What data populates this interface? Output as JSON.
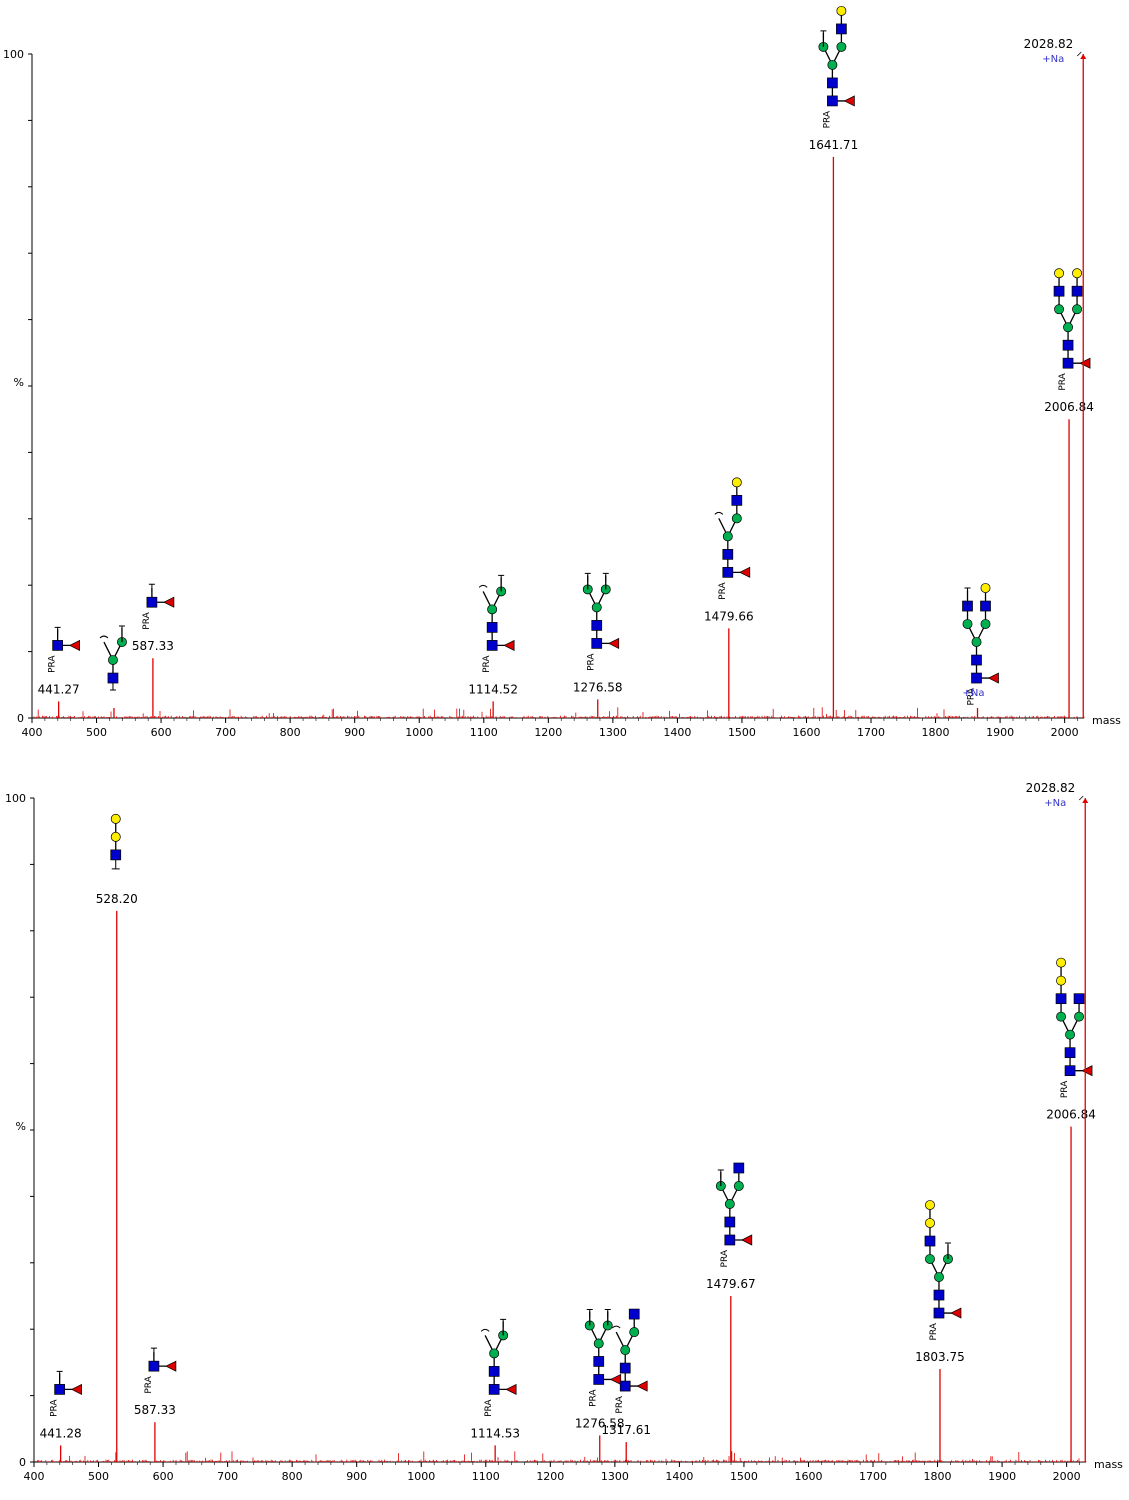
{
  "chart_data": [
    {
      "type": "bar",
      "xlabel": "mass",
      "ylabel": "%",
      "xlim": [
        400,
        2030
      ],
      "ylim": [
        0,
        100
      ],
      "xticks": [
        400,
        500,
        600,
        700,
        800,
        900,
        1000,
        1100,
        1200,
        1300,
        1400,
        1500,
        1600,
        1700,
        1800,
        1900,
        2000
      ],
      "yticks": [
        "0",
        "100"
      ],
      "colors": {
        "peak": "#e00000",
        "adduct": "#3333cc",
        "hexnac": "#0000cc",
        "hex": "#00b050",
        "gal": "#ffee00",
        "fuc": "#dd0000"
      },
      "peaks": [
        {
          "x": 441.27,
          "y": 2.5,
          "label": "441.27",
          "glycan": "fuc-core"
        },
        {
          "x": 527,
          "y": 1.5,
          "label": "",
          "glycan": "partial-branch"
        },
        {
          "x": 587.33,
          "y": 9,
          "label": "587.33",
          "glycan": "fuc-core-only"
        },
        {
          "x": 1114.52,
          "y": 2.5,
          "label": "1114.52",
          "glycan": "fuc-core-man2"
        },
        {
          "x": 1276.58,
          "y": 2.8,
          "label": "1276.58",
          "glycan": "fuc-core-man3"
        },
        {
          "x": 1479.66,
          "y": 13.5,
          "label": "1479.66",
          "glycan": "fuc-1glcnac-gal"
        },
        {
          "x": 1641.71,
          "y": 84.5,
          "label": "1641.71",
          "glycan": "fuc-1glcnac-gal-full"
        },
        {
          "x": 1865,
          "y": 1.5,
          "label": "",
          "glycan": "fuc-2glcnac-gal-adduct"
        },
        {
          "x": 2006.84,
          "y": 45,
          "label": "2006.84",
          "glycan": "fuc-2glcnac-2gal"
        },
        {
          "x": 2028.82,
          "y": 100,
          "label": "2028.82",
          "glycan": ""
        }
      ],
      "adduct_labels": [
        {
          "x": 2028.82,
          "text": "+Na"
        },
        {
          "x": 1865,
          "text": "+Na"
        }
      ],
      "tag": "PRA"
    },
    {
      "type": "bar",
      "xlabel": "mass",
      "ylabel": "%",
      "xlim": [
        400,
        2030
      ],
      "ylim": [
        0,
        100
      ],
      "xticks": [
        400,
        500,
        600,
        700,
        800,
        900,
        1000,
        1100,
        1200,
        1300,
        1400,
        1500,
        1600,
        1700,
        1800,
        1900,
        2000
      ],
      "yticks": [
        "0",
        "100"
      ],
      "colors": {
        "peak": "#e00000",
        "adduct": "#3333cc",
        "hexnac": "#0000cc",
        "hex": "#00b050",
        "gal": "#ffee00",
        "fuc": "#dd0000"
      },
      "peaks": [
        {
          "x": 441.28,
          "y": 2.5,
          "label": "441.28",
          "glycan": "fuc-core"
        },
        {
          "x": 528.2,
          "y": 83,
          "label": "528.20",
          "glycan": "glcnac-2gal"
        },
        {
          "x": 587.33,
          "y": 6,
          "label": "587.33",
          "glycan": "fuc-core-only"
        },
        {
          "x": 1114.53,
          "y": 2.5,
          "label": "1114.53",
          "glycan": "fuc-core-man2"
        },
        {
          "x": 1276.58,
          "y": 4,
          "label": "1276.58",
          "glycan": "fuc-core-man3"
        },
        {
          "x": 1317.61,
          "y": 3,
          "label": "1317.61",
          "glycan": "fuc-1glcnac"
        },
        {
          "x": 1479.67,
          "y": 25,
          "label": "1479.67",
          "glycan": "fuc-1glcnac-man"
        },
        {
          "x": 1803.75,
          "y": 14,
          "label": "1803.75",
          "glycan": "fuc-1glcnac-2gal"
        },
        {
          "x": 2006.84,
          "y": 50.5,
          "label": "2006.84",
          "glycan": "fuc-2glcnac-2gal-b"
        },
        {
          "x": 2028.82,
          "y": 100,
          "label": "2028.82",
          "glycan": ""
        }
      ],
      "adduct_labels": [
        {
          "x": 2028.82,
          "text": "+Na"
        }
      ],
      "tag": "PRA"
    }
  ]
}
